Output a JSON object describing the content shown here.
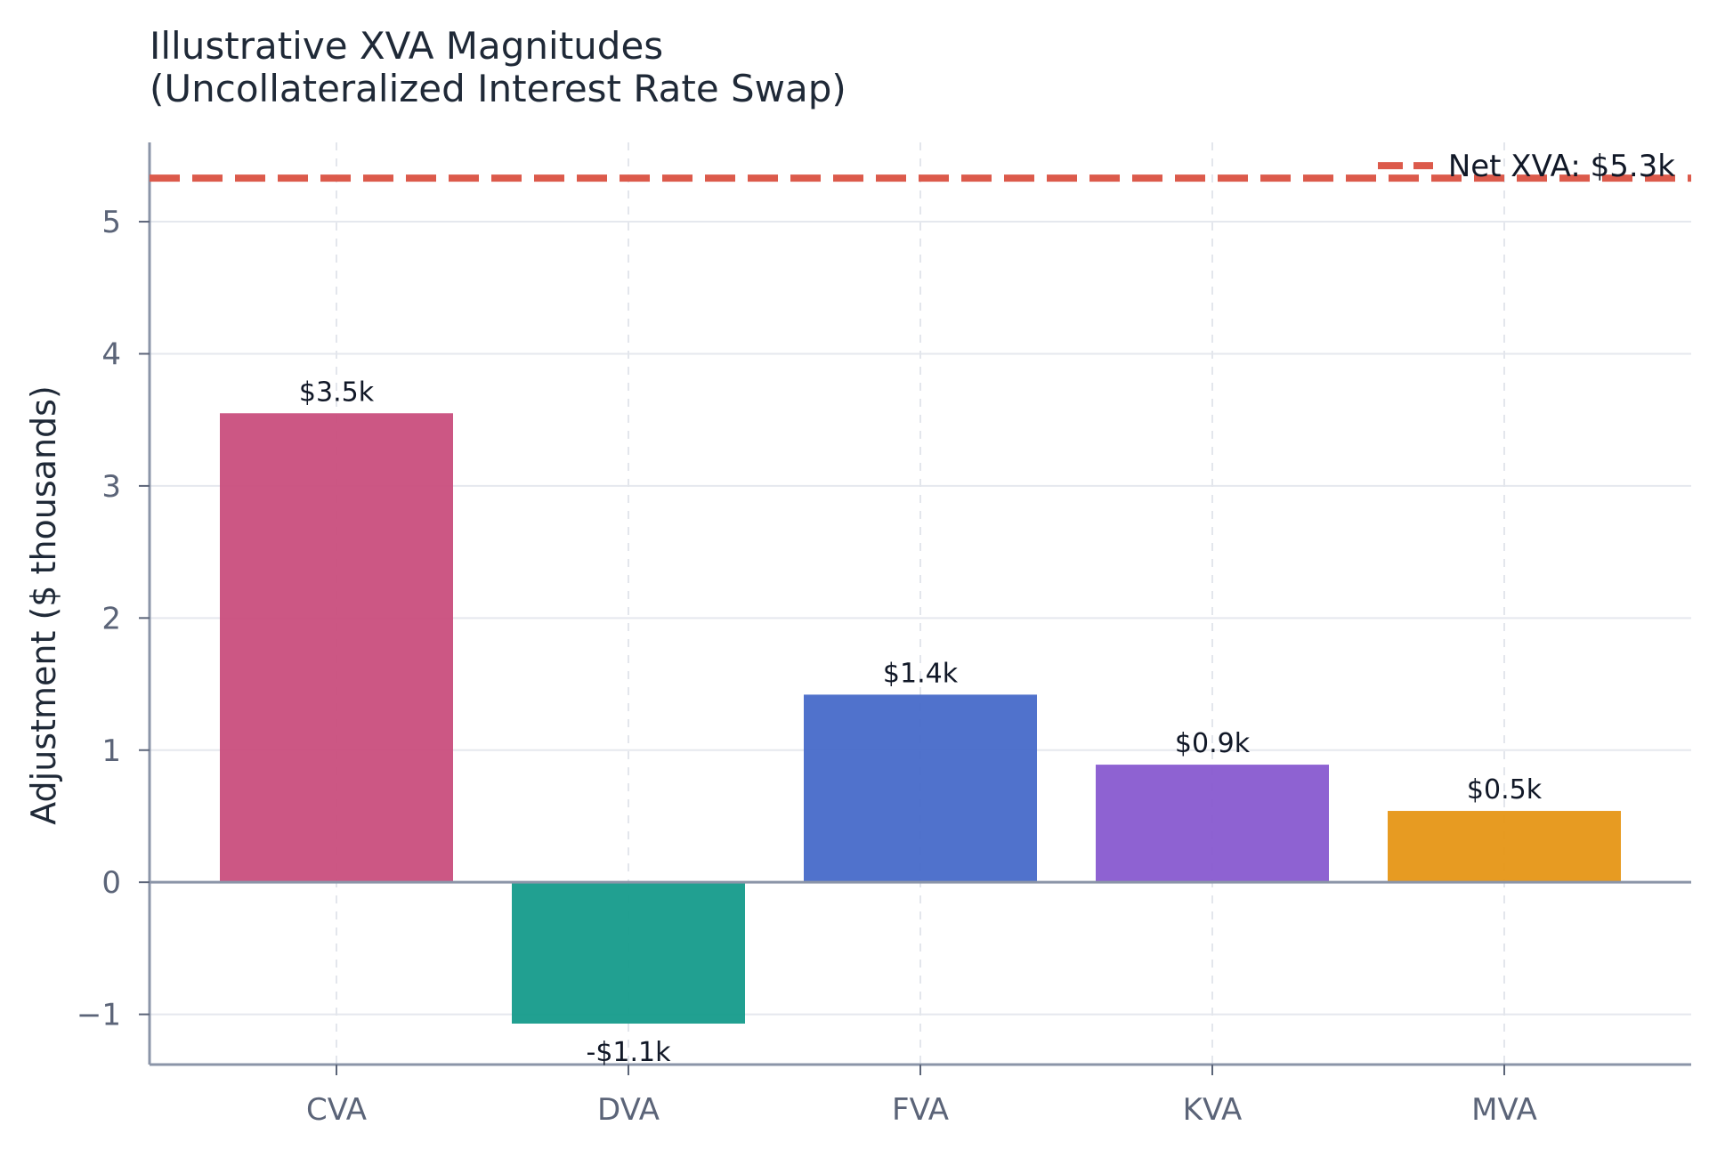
{
  "chart_data": {
    "type": "bar",
    "title_lines": [
      "Illustrative XVA Magnitudes",
      "(Uncollateralized Interest Rate Swap)"
    ],
    "xlabel": "",
    "ylabel": "Adjustment ($ thousands)",
    "categories": [
      "CVA",
      "DVA",
      "FVA",
      "KVA",
      "MVA"
    ],
    "values": [
      3.55,
      -1.07,
      1.42,
      0.89,
      0.54
    ],
    "data_labels": [
      "$3.5k",
      "-$1.1k",
      "$1.4k",
      "$0.9k",
      "$0.5k"
    ],
    "colors": [
      "#c94c7c",
      "#139a8a",
      "#4569c9",
      "#8758cf",
      "#e69514"
    ],
    "ylim": [
      -1.38,
      5.6
    ],
    "yticks": [
      -1,
      0,
      1,
      2,
      3,
      4,
      5
    ],
    "ytick_labels": [
      "−1",
      "0",
      "1",
      "2",
      "3",
      "4",
      "5"
    ],
    "grid": true,
    "reference_line": {
      "value": 5.33,
      "label": "Net XVA: $5.3k",
      "color": "#dc5a4b",
      "style": "dashed"
    },
    "legend_position": "top-right"
  }
}
